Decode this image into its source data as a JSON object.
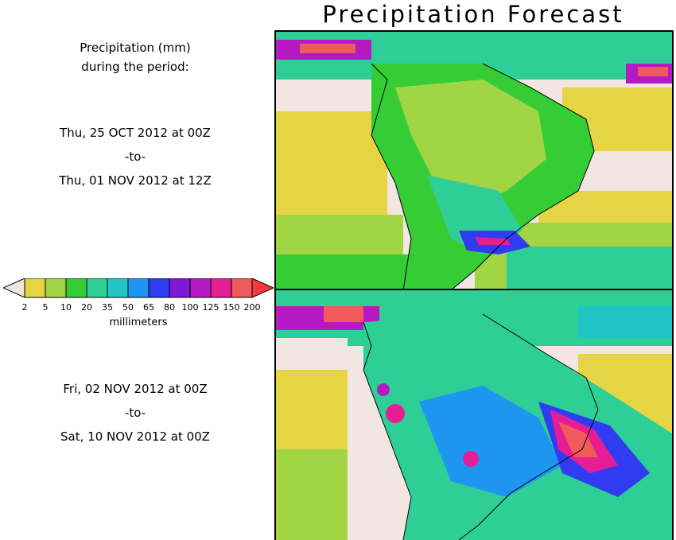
{
  "title": "Precipitation Forecast",
  "header_lines": [
    "Precipitation (mm)",
    "during the period:"
  ],
  "period1": {
    "start": "Thu, 25 OCT 2012 at 00Z",
    "sep": "-to-",
    "end": "Thu, 01 NOV 2012 at 12Z"
  },
  "period2": {
    "start": "Fri, 02 NOV 2012 at 00Z",
    "sep": "-to-",
    "end": "Sat, 10 NOV 2012 at 00Z"
  },
  "legend": {
    "units": "millimeters",
    "ticks": [
      "2",
      "5",
      "10",
      "20",
      "35",
      "50",
      "65",
      "80",
      "100",
      "125",
      "150",
      "200"
    ],
    "colors": [
      "#e5d544",
      "#a2d544",
      "#35cc35",
      "#2ecf96",
      "#22c6c6",
      "#1e96f0",
      "#2f3cf2",
      "#7d19d6",
      "#b519c1",
      "#e61e96",
      "#f05a5a"
    ],
    "low_color": "#f1e4dc",
    "high_color": "#f23a3a"
  }
}
